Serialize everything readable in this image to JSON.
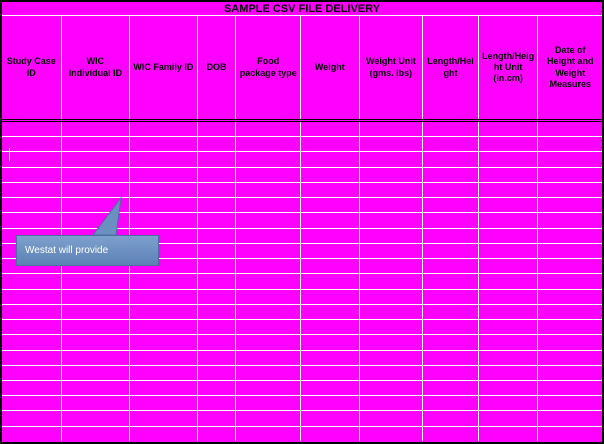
{
  "title": "SAMPLE CSV FILE DELIVERY",
  "columns": [
    {
      "label": "Study Case ID"
    },
    {
      "label": "WIC Individual ID"
    },
    {
      "label": "WIC Family ID"
    },
    {
      "label": "DOB"
    },
    {
      "label": "Food package type"
    },
    {
      "label": "Weight"
    },
    {
      "label": "Weight Unit (gms. lbs)"
    },
    {
      "label": "Length/Height"
    },
    {
      "label": "Length/Height Unit (in.cm)"
    },
    {
      "label": "Date of Height and Weight Measures"
    }
  ],
  "grid": {
    "row_count": 21
  },
  "callout": {
    "text": "Westat will provide"
  },
  "colors": {
    "background": "#FF00FF",
    "gridline": "#FFFFFF",
    "outer_border": "#000000",
    "callout_fill": "#6A8FC0",
    "callout_border": "#4A6FA0",
    "callout_text": "#FFFFFF"
  }
}
